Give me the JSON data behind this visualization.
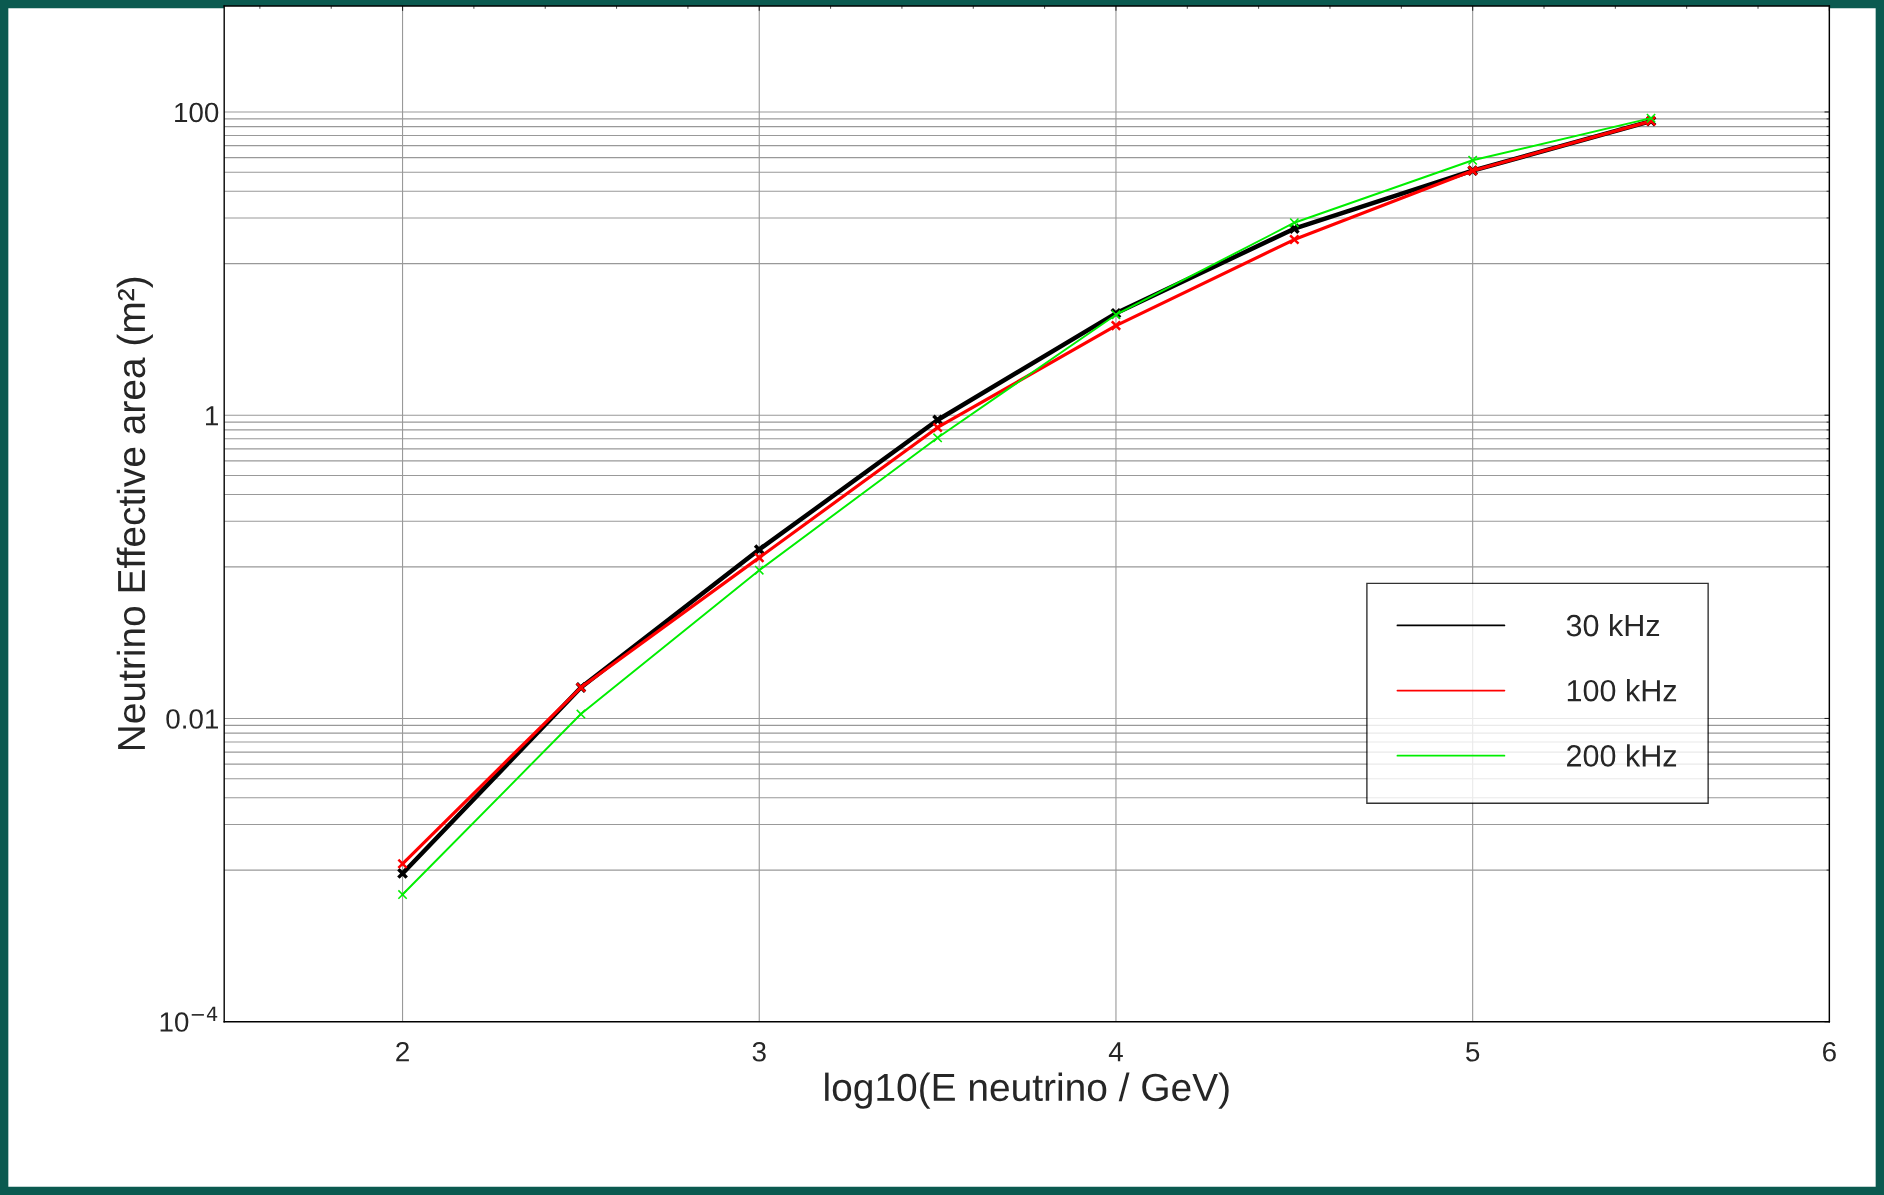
{
  "chart_data": {
    "type": "line",
    "xlabel": "log10(E neutrino / GeV)",
    "ylabel": "Neutrino Effective area (m²)",
    "x": [
      2,
      2.5,
      3,
      3.5,
      4,
      4.5,
      5,
      5.5
    ],
    "series": [
      {
        "name": "30 kHz",
        "color": "#000000",
        "values": [
          0.00095,
          0.016,
          0.13,
          0.93,
          4.7,
          17,
          41,
          87
        ]
      },
      {
        "name": "100 kHz",
        "color": "#ff0000",
        "values": [
          0.0011,
          0.016,
          0.115,
          0.83,
          3.9,
          14.4,
          41,
          87
        ]
      },
      {
        "name": "200 kHz",
        "color": "#00ee00",
        "values": [
          0.00069,
          0.0107,
          0.095,
          0.71,
          4.6,
          18.6,
          48,
          91
        ]
      }
    ],
    "log": "y",
    "xlim": [
      1.5,
      6
    ],
    "ylim": [
      0.0001,
      500
    ],
    "xticks": [
      2,
      3,
      4,
      5,
      6
    ],
    "yticks": [
      {
        "value": 0.0001,
        "label": "10$^{−4}$"
      },
      0.01,
      1,
      100
    ],
    "grid": true,
    "legend": "lower right",
    "marker": "cross",
    "line_style": "solid"
  }
}
